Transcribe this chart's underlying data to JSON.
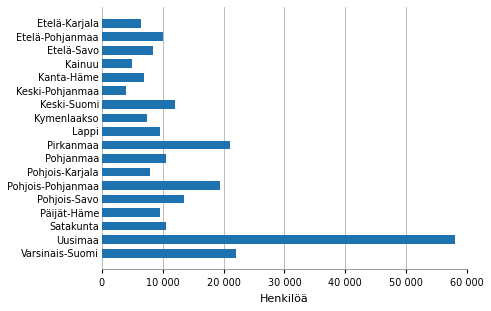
{
  "categories": [
    "Etelä-Karjala",
    "Etelä-Pohjanmaa",
    "Etelä-Savo",
    "Kainuu",
    "Kanta-Häme",
    "Keski-Pohjanmaa",
    "Keski-Suomi",
    "Kymenlaakso",
    "Lappi",
    "Pirkanmaa",
    "Pohjanmaa",
    "Pohjois-Karjala",
    "Pohjois-Pohjanmaa",
    "Pohjois-Savo",
    "Päijät-Häme",
    "Satakunta",
    "Uusimaa",
    "Varsinais-Suomi"
  ],
  "values": [
    6500,
    10000,
    8500,
    5000,
    7000,
    4000,
    12000,
    7500,
    9500,
    21000,
    10500,
    8000,
    19500,
    13500,
    9500,
    10500,
    58000,
    22000
  ],
  "bar_color": "#1F72B0",
  "xlabel": "Henkilöä",
  "xlim": [
    0,
    60000
  ],
  "xticks": [
    0,
    10000,
    20000,
    30000,
    40000,
    50000,
    60000
  ],
  "xtick_labels": [
    "0",
    "10 000",
    "20 000",
    "30 000",
    "40 000",
    "50 000",
    "60 000"
  ],
  "background_color": "#ffffff",
  "grid_color": "#b0b0b0",
  "tick_fontsize": 7,
  "label_fontsize": 8,
  "bar_height": 0.65
}
